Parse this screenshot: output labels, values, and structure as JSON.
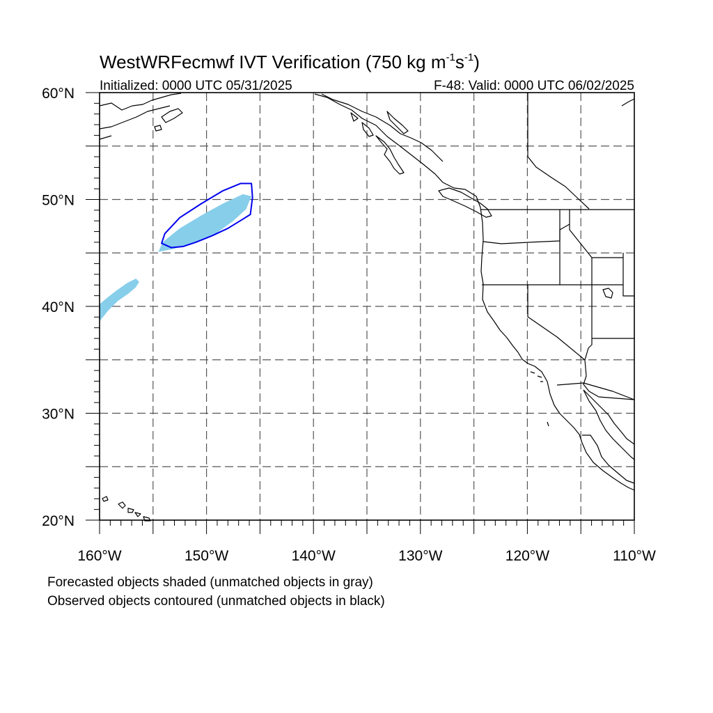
{
  "title": {
    "prefix": "WestWRFecmwf IVT Verification (750 kg m",
    "sup1": "-1",
    "middle": "s",
    "sup2": "-1",
    "suffix": ")"
  },
  "init_label": "Initialized: 0000 UTC 05/31/2025",
  "valid_label": "F-48: Valid: 0000 UTC 06/02/2025",
  "lat_ticks": [
    {
      "value": 20,
      "label": "20°N"
    },
    {
      "value": 30,
      "label": "30°N"
    },
    {
      "value": 40,
      "label": "40°N"
    },
    {
      "value": 50,
      "label": "50°N"
    },
    {
      "value": 60,
      "label": "60°N"
    }
  ],
  "lon_ticks": [
    {
      "value": -160,
      "label": "160°W"
    },
    {
      "value": -150,
      "label": "150°W"
    },
    {
      "value": -140,
      "label": "140°W"
    },
    {
      "value": -130,
      "label": "130°W"
    },
    {
      "value": -120,
      "label": "120°W"
    },
    {
      "value": -110,
      "label": "110°W"
    }
  ],
  "map_extent": {
    "lon": [
      -160,
      -110
    ],
    "lat": [
      20,
      60
    ]
  },
  "grid_interval_deg": 5,
  "colors": {
    "forecast_fill": "#87ceeb",
    "observed_contour": "#0000ee",
    "coast": "#000000"
  },
  "forecast_objects": [
    {
      "name": "forecast-object-main",
      "points": [
        [
          -154.5,
          45.1
        ],
        [
          -153,
          45.4
        ],
        [
          -151,
          46
        ],
        [
          -149,
          46.9
        ],
        [
          -147.5,
          48
        ],
        [
          -146.3,
          49.1
        ],
        [
          -145.8,
          50.3
        ],
        [
          -146.6,
          50.5
        ],
        [
          -148.5,
          49.6
        ],
        [
          -150.5,
          48.5
        ],
        [
          -152.5,
          47.3
        ],
        [
          -154.1,
          46
        ]
      ]
    },
    {
      "name": "forecast-object-west",
      "points": [
        [
          -160,
          38.6
        ],
        [
          -159.2,
          39.6
        ],
        [
          -158.3,
          40.5
        ],
        [
          -157.3,
          41.2
        ],
        [
          -156.6,
          41.8
        ],
        [
          -156.3,
          42.3
        ],
        [
          -156.6,
          42.6
        ],
        [
          -157.4,
          42.2
        ],
        [
          -158.4,
          41.5
        ],
        [
          -159.3,
          40.8
        ],
        [
          -160,
          40.2
        ]
      ]
    }
  ],
  "observed_objects": [
    {
      "name": "observed-contour",
      "points": [
        [
          -154.2,
          45.9
        ],
        [
          -153.3,
          45.5
        ],
        [
          -152.2,
          45.6
        ],
        [
          -151,
          46
        ],
        [
          -149.5,
          46.6
        ],
        [
          -148,
          47.3
        ],
        [
          -146.7,
          48.1
        ],
        [
          -145.9,
          48.6
        ],
        [
          -145.7,
          50.2
        ],
        [
          -145.8,
          51.5
        ],
        [
          -146.8,
          51.5
        ],
        [
          -148.5,
          50.8
        ],
        [
          -150.5,
          49.6
        ],
        [
          -152.5,
          48.3
        ],
        [
          -153.9,
          46.8
        ]
      ]
    }
  ],
  "notes": [
    "Forecasted objects shaded (unmatched objects in gray)",
    "Observed objects contoured (unmatched objects in black)"
  ]
}
